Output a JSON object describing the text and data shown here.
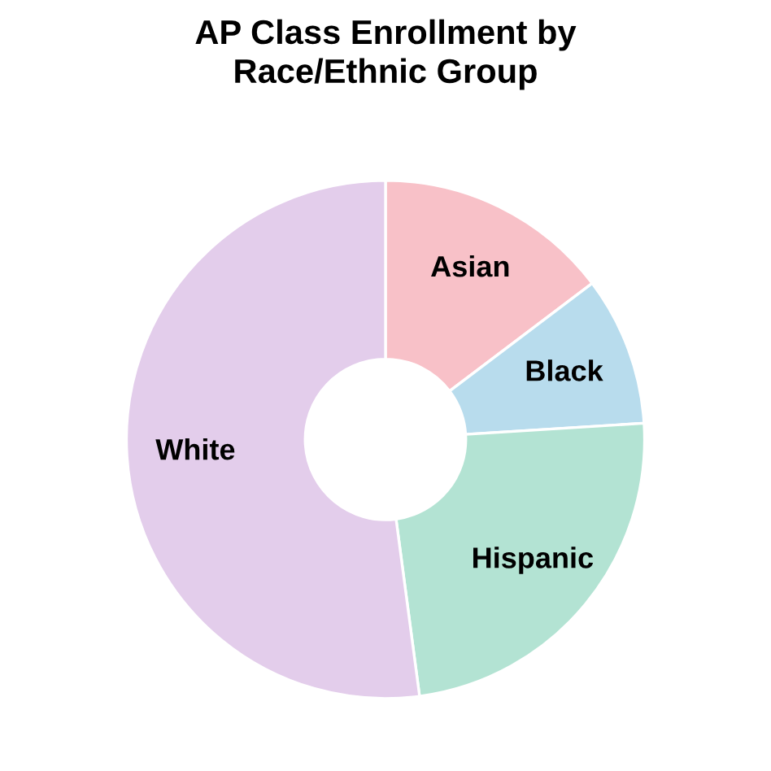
{
  "chart_data": {
    "type": "donut",
    "title": "AP Class Enrollment by\nRace/Ethnic Group",
    "categories": [
      "Asian",
      "Black",
      "Hispanic",
      "White"
    ],
    "values": [
      14.7,
      9.3,
      23.9,
      52.1
    ],
    "colors": [
      "#f8c1c8",
      "#b8dced",
      "#b3e3d3",
      "#e3cdeb"
    ]
  }
}
